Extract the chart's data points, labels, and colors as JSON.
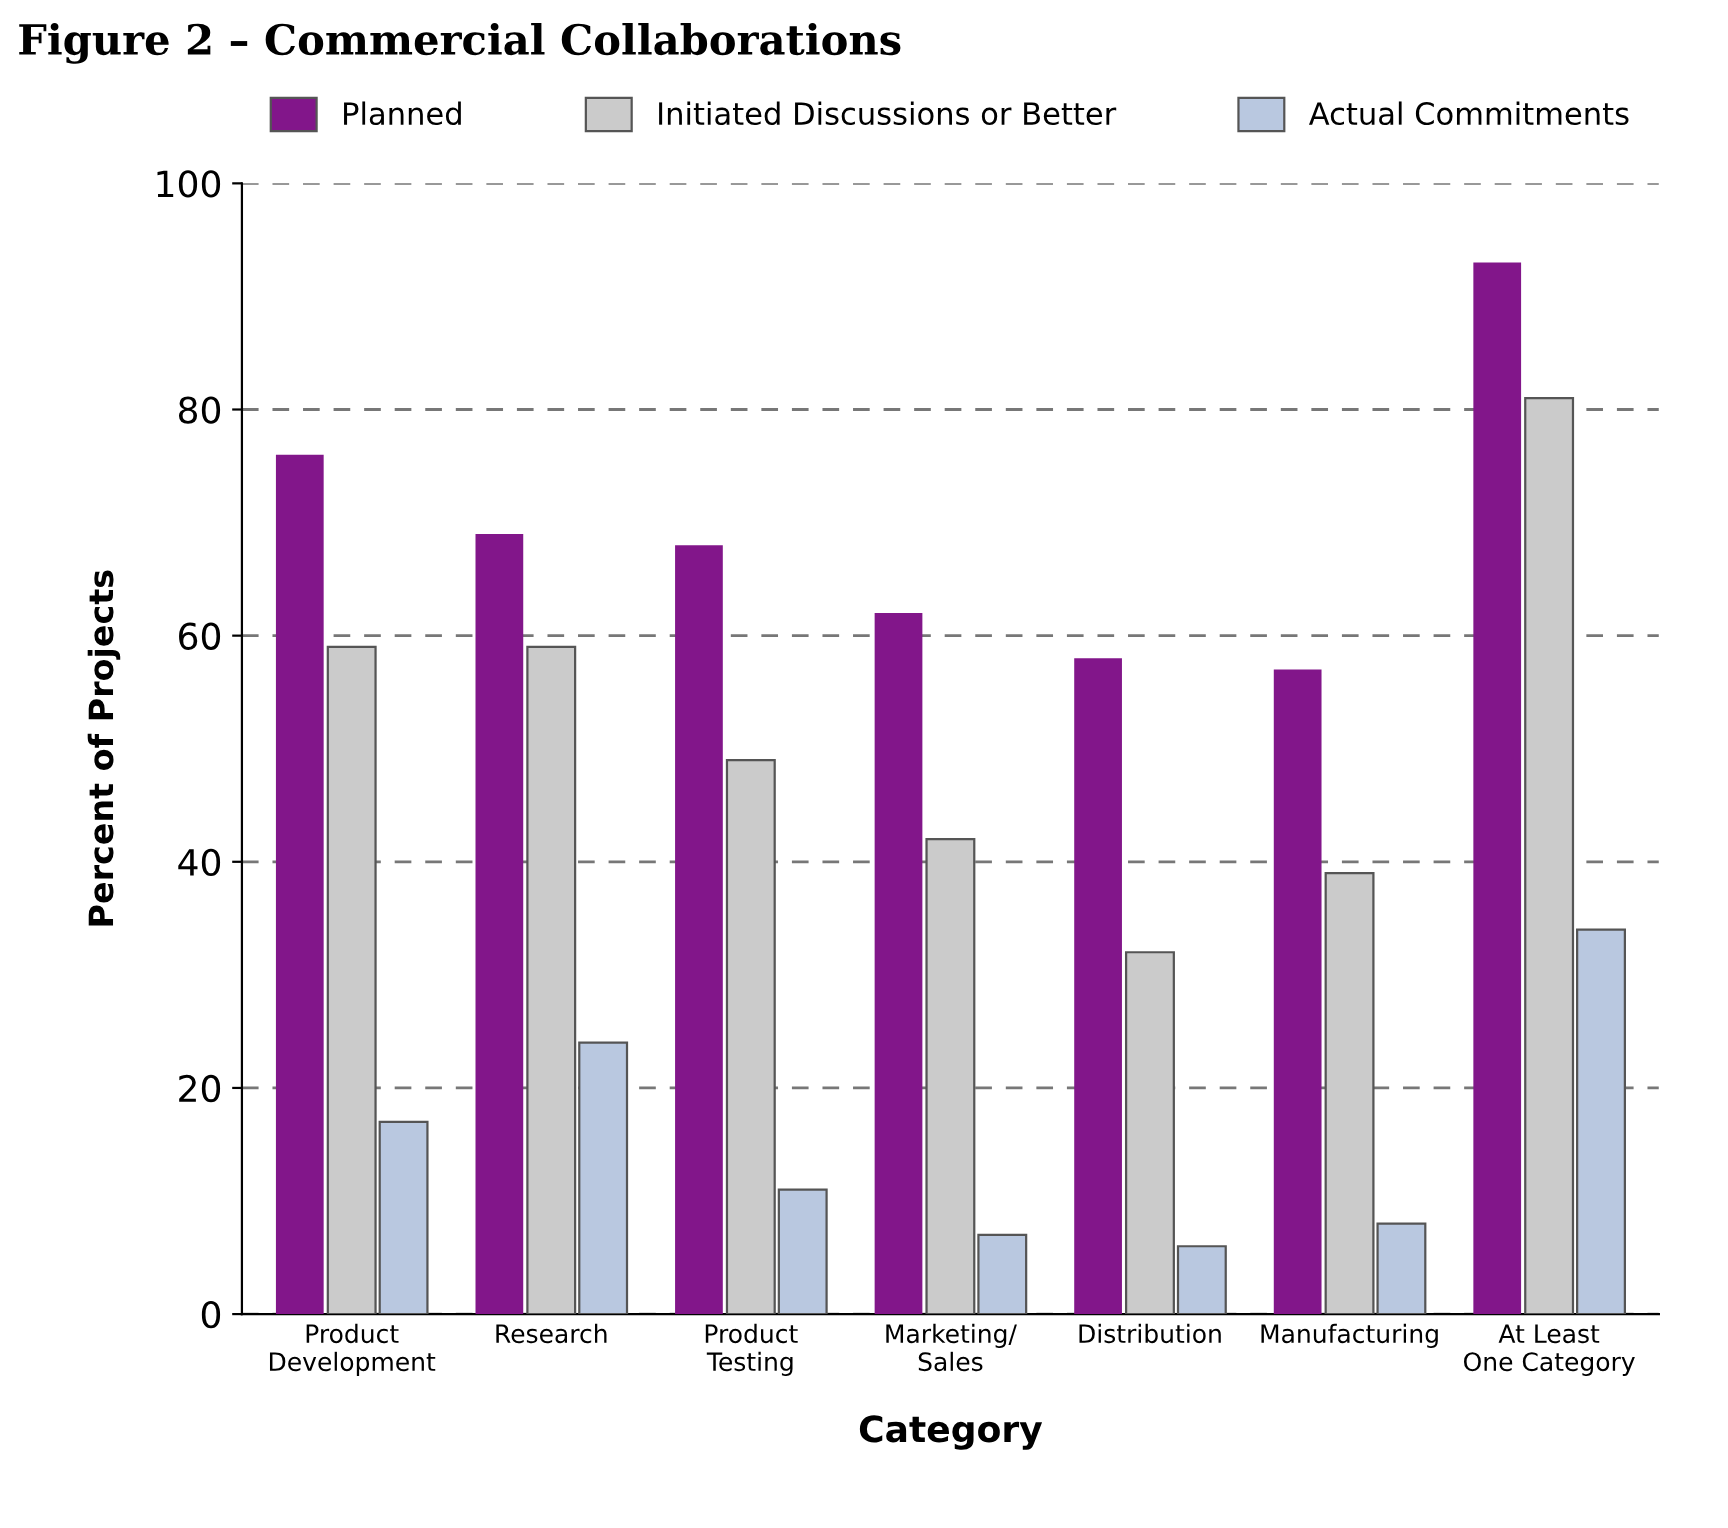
{
  "chart_data": {
    "type": "bar",
    "title": "Figure 2 – Commercial Collaborations",
    "xlabel": "Category",
    "ylabel": "Percent of Projects",
    "categories": [
      "Product\nDevelopment",
      "Research",
      "Product\nTesting",
      "Marketing/\nSales",
      "Distribution",
      "Manufacturing",
      "At Least\nOne Category"
    ],
    "series": [
      {
        "name": "Planned",
        "color": "#82168a",
        "values": [
          76,
          69,
          68,
          62,
          58,
          57,
          93
        ]
      },
      {
        "name": "Initiated Discussions or Better",
        "color": "#cbcbcb",
        "values": [
          59,
          59,
          49,
          42,
          32,
          39,
          81
        ]
      },
      {
        "name": "Actual Commitments",
        "color": "#b9c8e0",
        "values": [
          17,
          24,
          11,
          7,
          6,
          8,
          34
        ]
      }
    ],
    "ylim": [
      0,
      100
    ],
    "yticks": [
      0,
      20,
      40,
      60,
      80,
      100
    ],
    "grid": "y",
    "legend": "top"
  }
}
